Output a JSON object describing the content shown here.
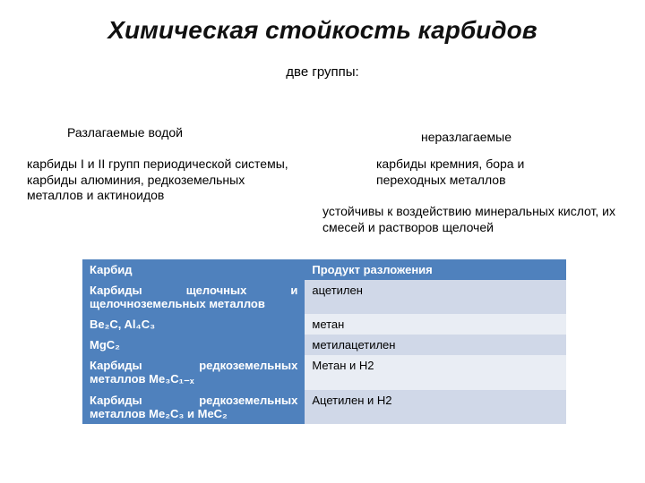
{
  "title": "Химическая стойкость карбидов",
  "subtitle": "две группы:",
  "left": {
    "header": "Разлагаемые водой",
    "body": "карбиды I и II групп периодической системы, карбиды алюминия, редкоземельных металлов\n и актиноидов"
  },
  "right": {
    "header": "неразлагаемые",
    "body": "карбиды кремния, бора\nи переходных металлов",
    "note": "устойчивы к воздействию минеральных кислот, их смесей и растворов щелочей"
  },
  "table": {
    "header_bg": "#4f81bd",
    "band_a_bg": "#d0d8e8",
    "band_b_bg": "#e9edf4",
    "header_fg": "#ffffff",
    "columns": [
      "Карбид",
      "Продукт разложения"
    ],
    "col_widths": [
      "46%",
      "54%"
    ],
    "rows": [
      {
        "c0": "Карбиды щелочных и щелочноземельных металлов",
        "c1": "ацетилен",
        "band": "a",
        "justify": true
      },
      {
        "c0": "Be₂C, Al₄C₃",
        "c1": "метан",
        "band": "b",
        "justify": false
      },
      {
        "c0": "MgC₂",
        "c1": "метилацетилен",
        "band": "a",
        "justify": false
      },
      {
        "c0": "Карбиды редкоземельных металлов Me₃C₁₋ₓ",
        "c1": "Метан и H2",
        "band": "b",
        "justify": true
      },
      {
        "c0": "Карбиды редкоземельных металлов Me₂C₃ и MeC₂",
        "c1": "Ацетилен и H2",
        "band": "a",
        "justify": true
      }
    ]
  }
}
